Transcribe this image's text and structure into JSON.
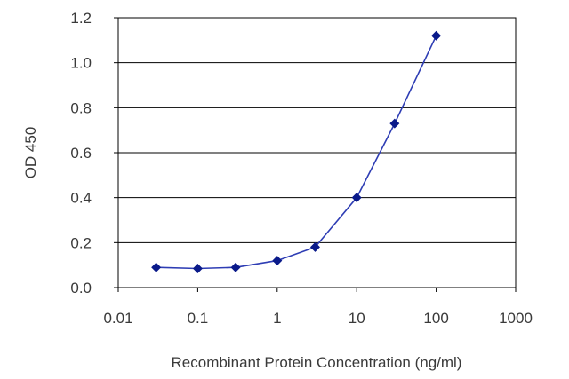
{
  "chart_data": {
    "type": "line",
    "title": "",
    "xlabel": "Recombinant Protein Concentration (ng/ml)",
    "ylabel": "OD 450",
    "x_scale": "log",
    "xlim": [
      0.01,
      1000
    ],
    "ylim": [
      0,
      1.2
    ],
    "x_ticks": [
      "0.01",
      "0.1",
      "1",
      "10",
      "100",
      "1000"
    ],
    "y_ticks": [
      "0.0",
      "0.2",
      "0.4",
      "0.6",
      "0.8",
      "1.0",
      "1.2"
    ],
    "grid": "horizontal",
    "legend": "none",
    "series": [
      {
        "color": "#2e3db4",
        "marker_color": "#0a1a8a",
        "x": [
          0.03,
          0.1,
          0.3,
          1,
          3,
          10,
          30,
          100
        ],
        "y": [
          0.09,
          0.085,
          0.09,
          0.12,
          0.18,
          0.4,
          0.73,
          1.12
        ]
      }
    ]
  }
}
